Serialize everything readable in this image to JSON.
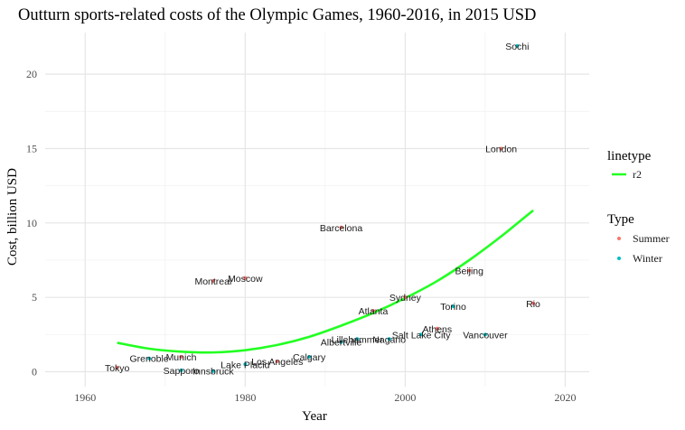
{
  "chart_data": {
    "type": "scatter",
    "title": "Outturn sports-related costs of the Olympic Games, 1960-2016, in 2015 USD",
    "xlabel": "Year",
    "ylabel": "Cost, billion USD",
    "xlim": [
      1955,
      2023
    ],
    "ylim": [
      -1.0,
      22.8
    ],
    "x_ticks": [
      1960,
      1980,
      2000,
      2020
    ],
    "y_ticks": [
      0,
      5,
      10,
      15,
      20
    ],
    "grid": true,
    "legend_position": "right",
    "colors": {
      "Summer": "#f8766d",
      "Winter": "#00bfc4",
      "r2": "#22ff22"
    },
    "legend_linetype": {
      "title": "linetype",
      "entries": [
        "r2"
      ]
    },
    "legend_type": {
      "title": "Type",
      "entries": [
        "Summer",
        "Winter"
      ]
    },
    "series": [
      {
        "name": "Summer",
        "points": [
          {
            "label": "Tokyo",
            "x": 1964,
            "y": 0.28
          },
          {
            "label": "Munich",
            "x": 1972,
            "y": 1.0
          },
          {
            "label": "Montreal",
            "x": 1976,
            "y": 6.1
          },
          {
            "label": "Moscow",
            "x": 1980,
            "y": 6.3
          },
          {
            "label": "Los Angeles",
            "x": 1984,
            "y": 0.7
          },
          {
            "label": "Barcelona",
            "x": 1992,
            "y": 9.7
          },
          {
            "label": "Atlanta",
            "x": 1996,
            "y": 4.1
          },
          {
            "label": "Sydney",
            "x": 2000,
            "y": 5.0
          },
          {
            "label": "Athens",
            "x": 2004,
            "y": 2.9
          },
          {
            "label": "Beijing",
            "x": 2008,
            "y": 6.8
          },
          {
            "label": "London",
            "x": 2012,
            "y": 15.0
          },
          {
            "label": "Rio",
            "x": 2016,
            "y": 4.6
          }
        ]
      },
      {
        "name": "Winter",
        "points": [
          {
            "label": "Grenoble",
            "x": 1968,
            "y": 0.9
          },
          {
            "label": "Sapporo",
            "x": 1972,
            "y": 0.1
          },
          {
            "label": "Innsbruck",
            "x": 1976,
            "y": 0.05
          },
          {
            "label": "Lake Placid",
            "x": 1980,
            "y": 0.5
          },
          {
            "label": "Calgary",
            "x": 1988,
            "y": 1.0
          },
          {
            "label": "Albertville",
            "x": 1992,
            "y": 2.0
          },
          {
            "label": "Lillehammer",
            "x": 1994,
            "y": 2.2
          },
          {
            "label": "Nagano",
            "x": 1998,
            "y": 2.2
          },
          {
            "label": "Salt Lake City",
            "x": 2002,
            "y": 2.5
          },
          {
            "label": "Torino",
            "x": 2006,
            "y": 4.4
          },
          {
            "label": "Vancouver",
            "x": 2010,
            "y": 2.5
          },
          {
            "label": "Sochi",
            "x": 2014,
            "y": 21.9
          }
        ]
      }
    ],
    "trend_line": {
      "name": "r2",
      "x": [
        1964,
        1968,
        1972,
        1976,
        1980,
        1984,
        1988,
        1992,
        1996,
        2000,
        2004,
        2008,
        2012,
        2016
      ],
      "y": [
        1.95,
        1.55,
        1.35,
        1.3,
        1.45,
        1.8,
        2.35,
        3.1,
        3.95,
        4.95,
        6.1,
        7.5,
        9.1,
        10.85
      ]
    }
  }
}
